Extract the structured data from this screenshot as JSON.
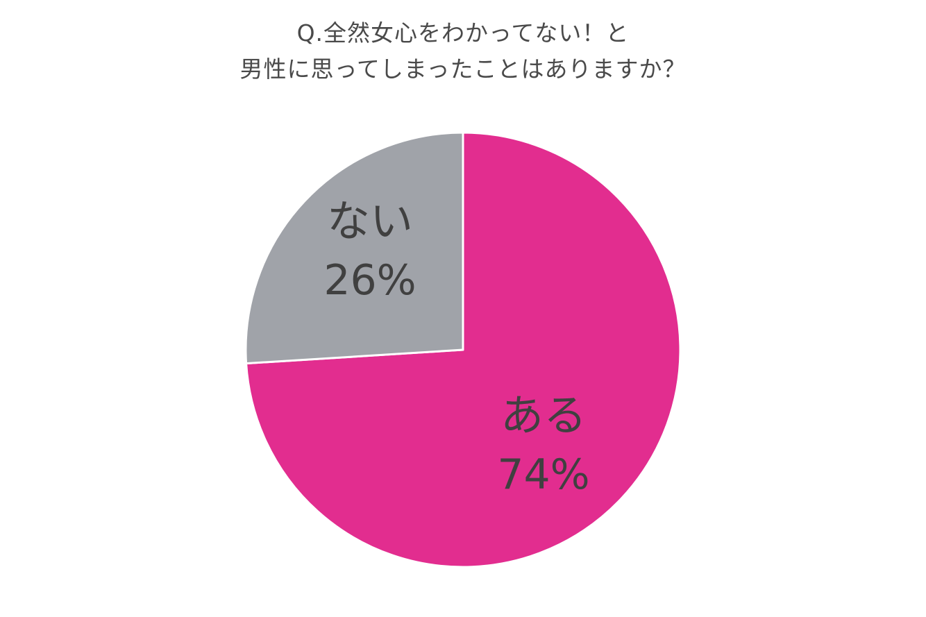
{
  "chart_data": {
    "type": "pie",
    "title_lines": [
      "Q.全然女心をわかってない！と",
      "男性に思ってしまったことはありますか？"
    ],
    "slices": [
      {
        "label": "ある",
        "value": 74,
        "value_label": "74%",
        "color": "#e22d8f"
      },
      {
        "label": "ない",
        "value": 26,
        "value_label": "26%",
        "color": "#a0a3a9"
      }
    ],
    "start_angle": "12 o'clock",
    "direction": "clockwise",
    "legend": "none",
    "labels_inside_slices": true
  }
}
